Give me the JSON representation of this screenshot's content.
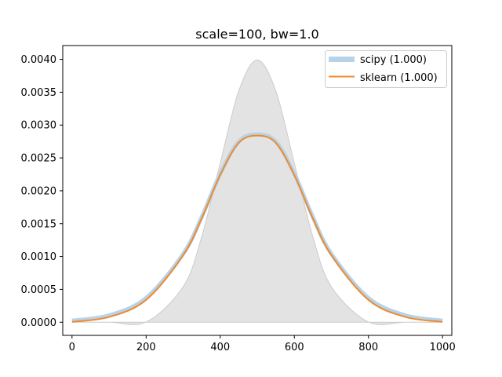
{
  "chart_data": {
    "type": "line",
    "title": "scale=100, bw=1.0",
    "xlabel": "",
    "ylabel": "",
    "xlim": [
      -25,
      1025
    ],
    "ylim": [
      -0.0002,
      0.00421
    ],
    "x_ticks": [
      0,
      200,
      400,
      600,
      800,
      1000
    ],
    "x_tick_labels": [
      "0",
      "200",
      "400",
      "600",
      "800",
      "1000"
    ],
    "y_ticks": [
      0.0,
      0.0005,
      0.001,
      0.0015,
      0.002,
      0.0025,
      0.003,
      0.0035,
      0.004
    ],
    "y_tick_labels": [
      "0.0000",
      "0.0005",
      "0.0010",
      "0.0015",
      "0.0020",
      "0.0025",
      "0.0030",
      "0.0035",
      "0.0040"
    ],
    "grid": false,
    "legend_position": "top-right",
    "reference_area": {
      "color": "#e3e3e3",
      "edge_color": "#cccccc",
      "x": [
        0,
        100,
        200,
        300,
        350,
        400,
        450,
        500,
        550,
        600,
        650,
        700,
        800,
        900,
        1000
      ],
      "y": [
        0.0,
        0.0,
        3.5e-06,
        0.00054,
        0.0013,
        0.00242,
        0.00352,
        0.00399,
        0.00352,
        0.00242,
        0.0013,
        0.00054,
        3.5e-06,
        0.0,
        0.0
      ]
    },
    "series": [
      {
        "name": "scipy (1.000)",
        "color": "#b6d3e9",
        "x": [
          0,
          100,
          200,
          300,
          350,
          400,
          450,
          500,
          550,
          600,
          650,
          700,
          800,
          900,
          1000
        ],
        "y": [
          2.4e-05,
          0.000105,
          0.00037,
          0.00104,
          0.0016,
          0.00226,
          0.00275,
          0.00286,
          0.00275,
          0.00226,
          0.0016,
          0.00104,
          0.00037,
          0.000105,
          2.4e-05
        ]
      },
      {
        "name": "sklearn (1.000)",
        "color": "#f08a2c",
        "x": [
          0,
          100,
          200,
          300,
          350,
          400,
          450,
          500,
          550,
          600,
          650,
          700,
          800,
          900,
          1000
        ],
        "y": [
          5e-06,
          8e-05,
          0.00034,
          0.00102,
          0.00158,
          0.00224,
          0.00273,
          0.00284,
          0.00273,
          0.00224,
          0.00158,
          0.00102,
          0.00034,
          8e-05,
          5e-06
        ]
      }
    ]
  }
}
